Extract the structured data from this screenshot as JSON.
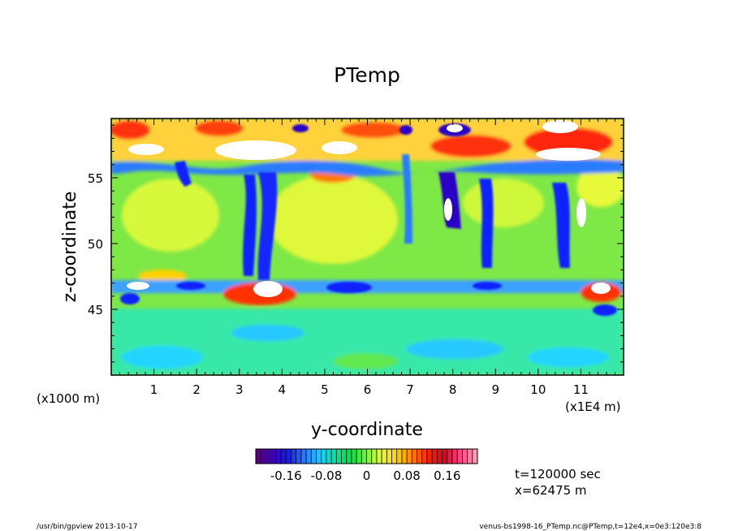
{
  "chart_data": {
    "type": "heatmap",
    "title": "PTemp",
    "xlabel": "y-coordinate",
    "ylabel": "z-coordinate",
    "x_unit_note": "(x1E4 m)",
    "y_unit_note": "(x1000 m)",
    "x_ticks": [
      1,
      2,
      3,
      4,
      5,
      6,
      7,
      8,
      9,
      10,
      11
    ],
    "y_ticks": [
      45,
      50,
      55
    ],
    "xlim": [
      0,
      12
    ],
    "ylim": [
      40,
      59.5
    ],
    "colorbar": {
      "range": [
        -0.22,
        0.22
      ],
      "tick_values": [
        -0.16,
        -0.08,
        0,
        0.08,
        0.16
      ],
      "tick_labels": [
        "-0.16",
        "-0.08",
        "0",
        "0.08",
        "0.16"
      ],
      "colors": [
        "#5a007a",
        "#3c00b8",
        "#1020ff",
        "#2a7cff",
        "#20c8ff",
        "#00e6a0",
        "#00e040",
        "#80f040",
        "#e8f83a",
        "#ffd000",
        "#ff7a00",
        "#ff2000",
        "#e00020",
        "#ff4080",
        "#ff9ab0"
      ]
    },
    "annotations": {
      "time": "t=120000 sec",
      "xpos": "x=62475 m"
    }
  },
  "footer": {
    "left": "/usr/bin/gpview   2013-10-17",
    "right": "venus-bs1998-16_PTemp.nc@PTemp,t=12e4,x=0e3:120e3:8"
  }
}
